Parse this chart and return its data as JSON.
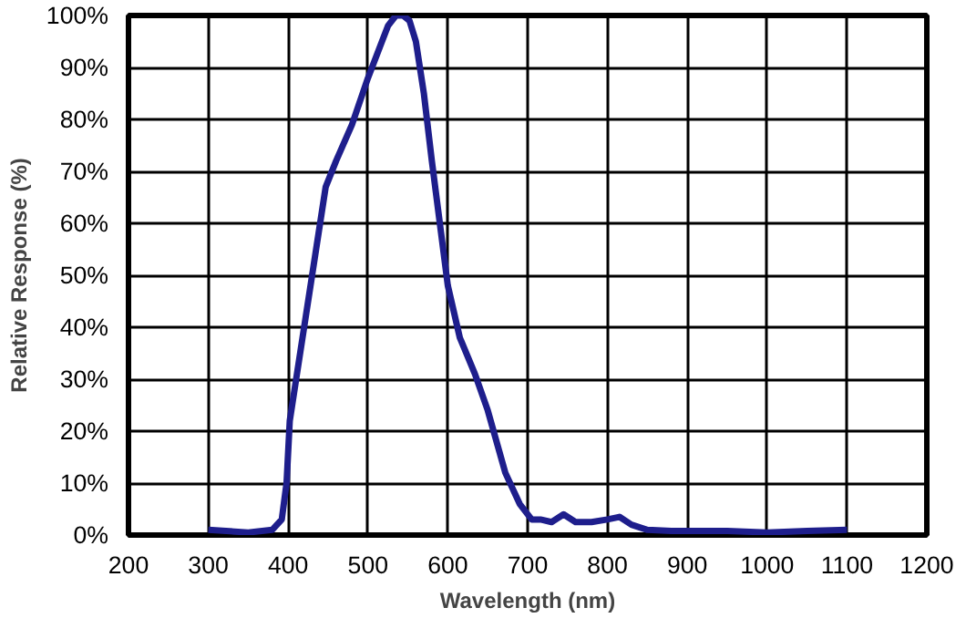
{
  "chart_data": {
    "type": "line",
    "xlabel": "Wavelength (nm)",
    "ylabel": "Relative Response (%)",
    "series": [
      {
        "color": "#1e1e8c",
        "x": [
          300,
          350,
          380,
          392,
          398,
          402,
          410,
          420,
          435,
          447,
          460,
          480,
          500,
          515,
          525,
          535,
          544,
          552,
          560,
          570,
          580,
          590,
          600,
          615,
          634,
          650,
          672,
          690,
          705,
          716,
          730,
          745,
          760,
          780,
          800,
          815,
          830,
          850,
          880,
          950,
          1000,
          1050,
          1100
        ],
        "values": [
          1,
          0.5,
          1,
          3,
          10,
          22,
          30,
          40,
          55,
          67,
          72,
          79,
          88,
          94,
          98,
          100,
          100,
          99,
          95,
          85,
          72,
          60,
          48,
          38,
          31,
          24,
          12,
          6,
          3,
          3,
          2.5,
          4,
          2.5,
          2.5,
          3,
          3.5,
          2,
          1,
          0.8,
          0.8,
          0.5,
          0.8,
          1
        ]
      }
    ],
    "xlim": [
      200,
      1200
    ],
    "xticks": [
      200,
      300,
      400,
      500,
      600,
      700,
      800,
      900,
      1000,
      1100,
      1200
    ],
    "ylim": [
      0,
      100
    ],
    "yticks": [
      {
        "value": 0,
        "label": "0%"
      },
      {
        "value": 10,
        "label": "10%"
      },
      {
        "value": 20,
        "label": "20%"
      },
      {
        "value": 30,
        "label": "30%"
      },
      {
        "value": 40,
        "label": "40%"
      },
      {
        "value": 50,
        "label": "50%"
      },
      {
        "value": 60,
        "label": "60%"
      },
      {
        "value": 70,
        "label": "70%"
      },
      {
        "value": 80,
        "label": "80%"
      },
      {
        "value": 90,
        "label": "90%"
      },
      {
        "value": 100,
        "label": "100%"
      }
    ],
    "grid": true,
    "line_style": "solid"
  }
}
